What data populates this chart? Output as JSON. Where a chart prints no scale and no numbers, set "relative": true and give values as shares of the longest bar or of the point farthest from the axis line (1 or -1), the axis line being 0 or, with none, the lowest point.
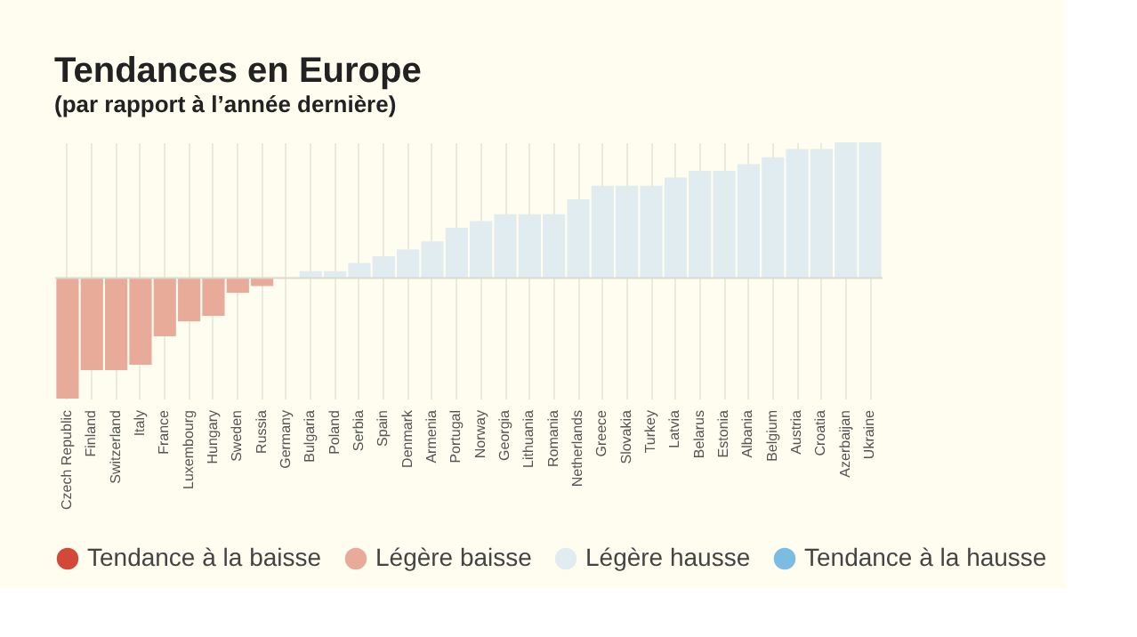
{
  "chart_data": {
    "type": "bar",
    "title": "Tendances en Europe",
    "subtitle": "(par rapport à l’année dernière)",
    "relative": true,
    "legend": "bottom",
    "grid": "x",
    "categories": [
      "Czech Republic",
      "Finland",
      "Switzerland",
      "Italy",
      "France",
      "Luxembourg",
      "Hungary",
      "Sweden",
      "Russia",
      "Germany",
      "Bulgaria",
      "Poland",
      "Serbia",
      "Spain",
      "Denmark",
      "Armenia",
      "Portugal",
      "Norway",
      "Georgia",
      "Lithuania",
      "Romania",
      "Netherlands",
      "Greece",
      "Slovakia",
      "Turkey",
      "Latvia",
      "Belarus",
      "Estonia",
      "Albania",
      "Belgium",
      "Austria",
      "Croatia",
      "Azerbaijan",
      "Ukraine"
    ],
    "series": [
      {
        "name": "Tendance à la baisse",
        "color": "#d2493a",
        "values": [
          null,
          null,
          null,
          null,
          null,
          null,
          null,
          null,
          null,
          null,
          null,
          null,
          null,
          null,
          null,
          null,
          null,
          null,
          null,
          null,
          null,
          null,
          null,
          null,
          null,
          null,
          null,
          null,
          null,
          null,
          null,
          null,
          null,
          null
        ]
      },
      {
        "name": "Légère baisse",
        "color": "#e8ab99",
        "values": [
          -0.89,
          -0.68,
          -0.68,
          -0.64,
          -0.43,
          -0.32,
          -0.28,
          -0.11,
          -0.06,
          0,
          null,
          null,
          null,
          null,
          null,
          null,
          null,
          null,
          null,
          null,
          null,
          null,
          null,
          null,
          null,
          null,
          null,
          null,
          null,
          null,
          null,
          null,
          null,
          null
        ]
      },
      {
        "name": "Légère hausse",
        "color": "#e1ecf0",
        "values": [
          null,
          null,
          null,
          null,
          null,
          null,
          null,
          null,
          null,
          null,
          0.05,
          0.05,
          0.11,
          0.16,
          0.21,
          0.27,
          0.37,
          0.42,
          0.47,
          0.47,
          0.47,
          0.58,
          0.68,
          0.68,
          0.68,
          0.74,
          0.79,
          0.79,
          0.84,
          0.89,
          0.95,
          0.95,
          1,
          1
        ]
      },
      {
        "name": "Tendance à la hausse",
        "color": "#7abde0",
        "values": [
          null,
          null,
          null,
          null,
          null,
          null,
          null,
          null,
          null,
          null,
          null,
          null,
          null,
          null,
          null,
          null,
          null,
          null,
          null,
          null,
          null,
          null,
          null,
          null,
          null,
          null,
          null,
          null,
          null,
          null,
          null,
          null,
          null,
          null
        ]
      }
    ]
  }
}
